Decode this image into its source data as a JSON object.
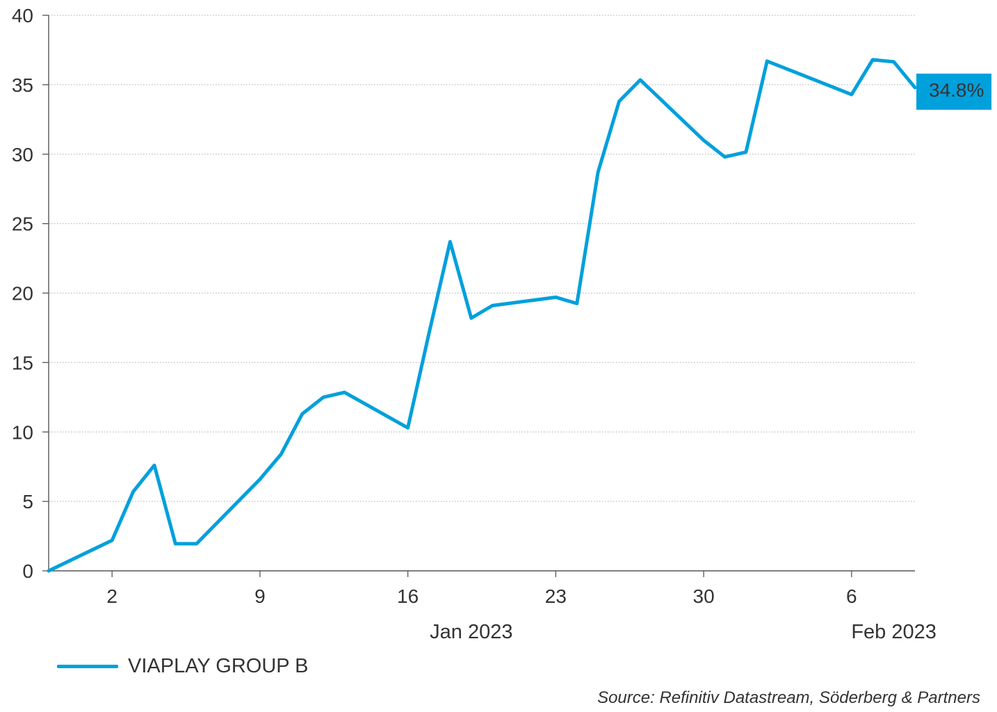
{
  "colors": {
    "series": "#00a0dc",
    "grid": "#bbbbbb",
    "axis": "#555555",
    "text": "#333333"
  },
  "chart_data": {
    "type": "line",
    "x": [
      "2022-12-30",
      "2023-01-02",
      "2023-01-03",
      "2023-01-04",
      "2023-01-05",
      "2023-01-06",
      "2023-01-09",
      "2023-01-10",
      "2023-01-11",
      "2023-01-12",
      "2023-01-13",
      "2023-01-16",
      "2023-01-17",
      "2023-01-18",
      "2023-01-19",
      "2023-01-20",
      "2023-01-23",
      "2023-01-24",
      "2023-01-25",
      "2023-01-26",
      "2023-01-27",
      "2023-01-30",
      "2023-01-31",
      "2023-02-01",
      "2023-02-02",
      "2023-02-03",
      "2023-02-06",
      "2023-02-07",
      "2023-02-08",
      "2023-02-09"
    ],
    "series": [
      {
        "name": "VIAPLAY GROUP B",
        "values": [
          0,
          2.2,
          5.7,
          7.6,
          1.95,
          1.95,
          6.6,
          8.4,
          11.3,
          12.5,
          12.85,
          10.3,
          17.1,
          23.7,
          18.2,
          19.1,
          19.7,
          19.25,
          28.7,
          33.8,
          35.35,
          31.0,
          29.8,
          30.15,
          36.7,
          36.1,
          34.3,
          36.8,
          36.65,
          34.8
        ]
      }
    ],
    "y_ticks": [
      "0",
      "5",
      "10",
      "15",
      "20",
      "25",
      "30",
      "35",
      "40"
    ],
    "ylim": [
      0,
      40
    ],
    "x_ticks": [
      {
        "date": "2023-01-02",
        "label": "2"
      },
      {
        "date": "2023-01-09",
        "label": "9"
      },
      {
        "date": "2023-01-16",
        "label": "16"
      },
      {
        "date": "2023-01-23",
        "label": "23"
      },
      {
        "date": "2023-01-30",
        "label": "30"
      },
      {
        "date": "2023-02-06",
        "label": "6"
      }
    ],
    "x_groups": [
      {
        "label": "Jan 2023"
      },
      {
        "label": "Feb 2023"
      }
    ],
    "end_label": "34.8%",
    "grid": true,
    "grid_style": "dotted horizontal",
    "legend_position": "bottom-left"
  },
  "legend": {
    "label": "VIAPLAY GROUP B"
  },
  "source": "Source: Refinitiv Datastream, Söderberg & Partners"
}
